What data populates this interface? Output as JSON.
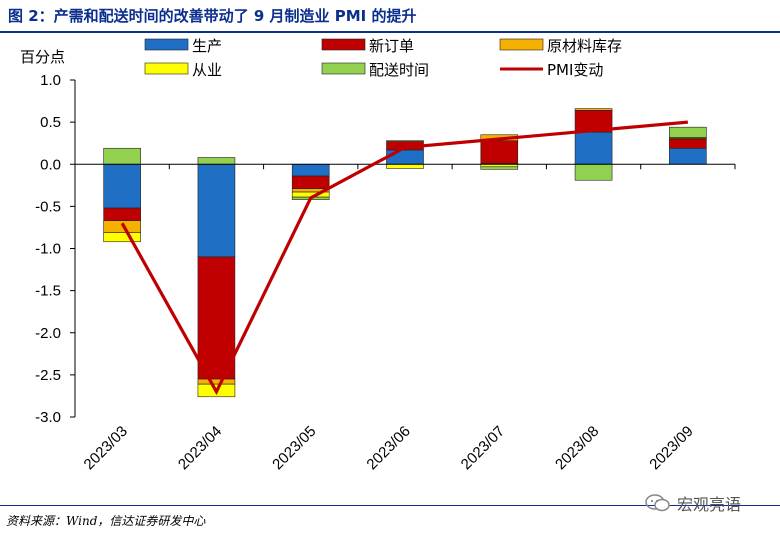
{
  "header": {
    "title": "图 2：产需和配送时间的改善带动了 9 月制造业 PMI 的提升"
  },
  "footer": {
    "source": "资料来源：Wind，信达证券研发中心",
    "watermark": "宏观亮语"
  },
  "colors": {
    "title": "#0b2f8f",
    "production": "#1f6fc5",
    "new_orders": "#c00000",
    "raw_inventory": "#f5b000",
    "employment": "#ffff00",
    "delivery_time": "#92d050",
    "pmi_change": "#c00000"
  },
  "chart_data": {
    "type": "bar",
    "stacked": true,
    "ylabel": "百分点",
    "ylim": [
      -3.0,
      1.0
    ],
    "yticks": [
      "1.0",
      "0.5",
      "0.0",
      "-0.5",
      "-1.0",
      "-1.5",
      "-2.0",
      "-2.5",
      "-3.0"
    ],
    "ytick_values": [
      1.0,
      0.5,
      0.0,
      -0.5,
      -1.0,
      -1.5,
      -2.0,
      -2.5,
      -3.0
    ],
    "categories": [
      "2023/03",
      "2023/04",
      "2023/05",
      "2023/06",
      "2023/07",
      "2023/08",
      "2023/09"
    ],
    "legend_position": "top",
    "series": [
      {
        "name": "生产",
        "color_key": "production",
        "values": [
          -0.52,
          -1.1,
          -0.14,
          0.17,
          0.01,
          0.38,
          0.19
        ]
      },
      {
        "name": "新订单",
        "color_key": "new_orders",
        "values": [
          -0.15,
          -1.45,
          -0.15,
          0.1,
          0.27,
          0.26,
          0.11
        ]
      },
      {
        "name": "原材料库存",
        "color_key": "raw_inventory",
        "values": [
          -0.14,
          -0.06,
          -0.04,
          0.01,
          0.07,
          0.02,
          0.01
        ]
      },
      {
        "name": "从业",
        "color_key": "employment",
        "values": [
          -0.11,
          -0.15,
          -0.06,
          -0.05,
          -0.03,
          0.0,
          0.01
        ]
      },
      {
        "name": "配送时间",
        "color_key": "delivery_time",
        "values": [
          0.19,
          0.08,
          -0.03,
          0.0,
          -0.03,
          -0.19,
          0.12
        ]
      }
    ],
    "line": {
      "name": "PMI变动",
      "color_key": "pmi_change",
      "values": [
        -0.7,
        -2.7,
        -0.4,
        0.2,
        0.3,
        0.4,
        0.5
      ]
    },
    "grid": false
  }
}
